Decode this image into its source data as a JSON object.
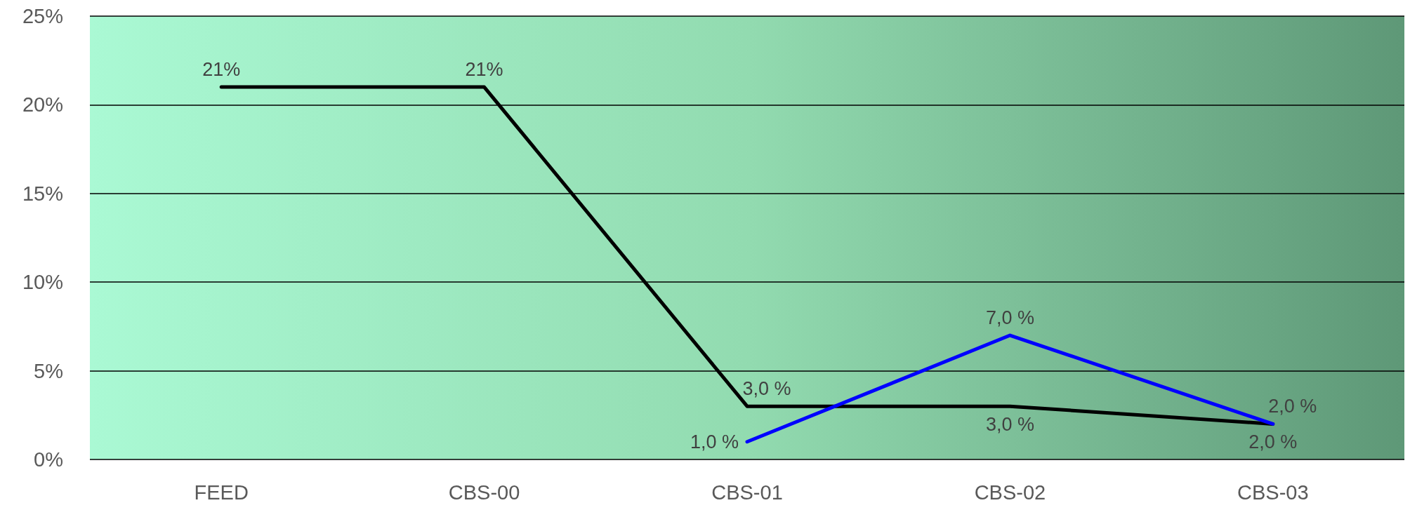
{
  "chart_data": {
    "type": "line",
    "categories": [
      "FEED",
      "CBS-00",
      "CBS-01",
      "CBS-02",
      "CBS-03"
    ],
    "series": [
      {
        "color": "#000000",
        "values": [
          21,
          21,
          3,
          3,
          2
        ],
        "value_labels": [
          "21%",
          "21%",
          "3,0 %",
          "3,0 %",
          "2,0 %"
        ]
      },
      {
        "color": "#0000ff",
        "values": [
          null,
          null,
          1,
          7,
          2
        ],
        "value_labels": [
          null,
          null,
          "1,0 %",
          "7,0 %",
          "2,0 %"
        ]
      }
    ],
    "ylim": [
      0,
      25
    ],
    "yticks": [
      {
        "value": 0,
        "label": "0%"
      },
      {
        "value": 5,
        "label": "5%"
      },
      {
        "value": 10,
        "label": "10%"
      },
      {
        "value": 15,
        "label": "15%"
      },
      {
        "value": 20,
        "label": "20%"
      },
      {
        "value": 25,
        "label": "25%"
      }
    ],
    "grid": "y",
    "marker": "none",
    "line_style": "solid"
  }
}
